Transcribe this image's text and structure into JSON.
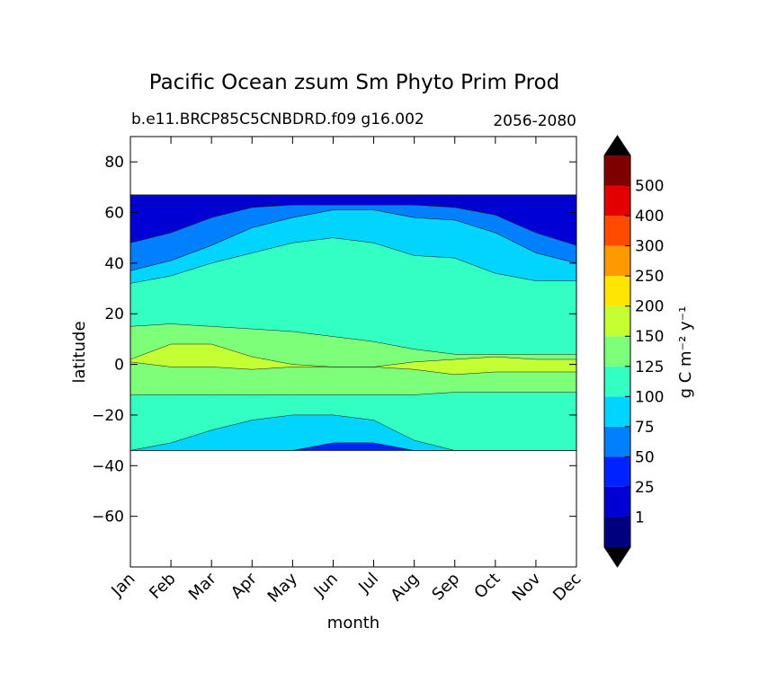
{
  "chart_data": {
    "type": "heatmap",
    "title": "Pacific Ocean zsum Sm Phyto Prim Prod",
    "subtitle_left": "b.e11.BRCP85C5CNBDRD.f09 g16.002",
    "subtitle_right": "2056-2080",
    "xlabel": "month",
    "ylabel": "latitude",
    "x_ticks": [
      "Jan",
      "Feb",
      "Mar",
      "Apr",
      "May",
      "Jun",
      "Jul",
      "Aug",
      "Sep",
      "Oct",
      "Nov",
      "Dec"
    ],
    "y_ticks": [
      80,
      60,
      40,
      20,
      0,
      -20,
      -40,
      -60
    ],
    "ylim": [
      -80,
      90
    ],
    "data_lat_range": [
      -34,
      67
    ],
    "colorbar": {
      "label": "g C m⁻² y⁻¹",
      "tick_labels": [
        "1",
        "25",
        "50",
        "75",
        "100",
        "125",
        "150",
        "200",
        "250",
        "300",
        "400",
        "500"
      ],
      "extend": "both",
      "under_color": "#000000",
      "over_color": "#000000",
      "colors": [
        "#00007f",
        "#0000d5",
        "#0022ff",
        "#0080ff",
        "#00d4ff",
        "#33ffc3",
        "#7dff7a",
        "#c3ff33",
        "#ffe500",
        "#ff9900",
        "#ff4a00",
        "#e30000",
        "#7f0000"
      ]
    },
    "level_bands_lat_by_month": {
      "note": "upper latitude boundary of each contour band (from south to north) per month",
      "months": [
        "Jan",
        "Feb",
        "Mar",
        "Apr",
        "May",
        "Jun",
        "Jul",
        "Aug",
        "Sep",
        "Oct",
        "Nov",
        "Dec"
      ],
      "b125_low_south": [
        -12,
        -12,
        -12,
        -12,
        -12,
        -12,
        -12,
        -12,
        -12,
        -12,
        -12,
        -12
      ]
    }
  }
}
